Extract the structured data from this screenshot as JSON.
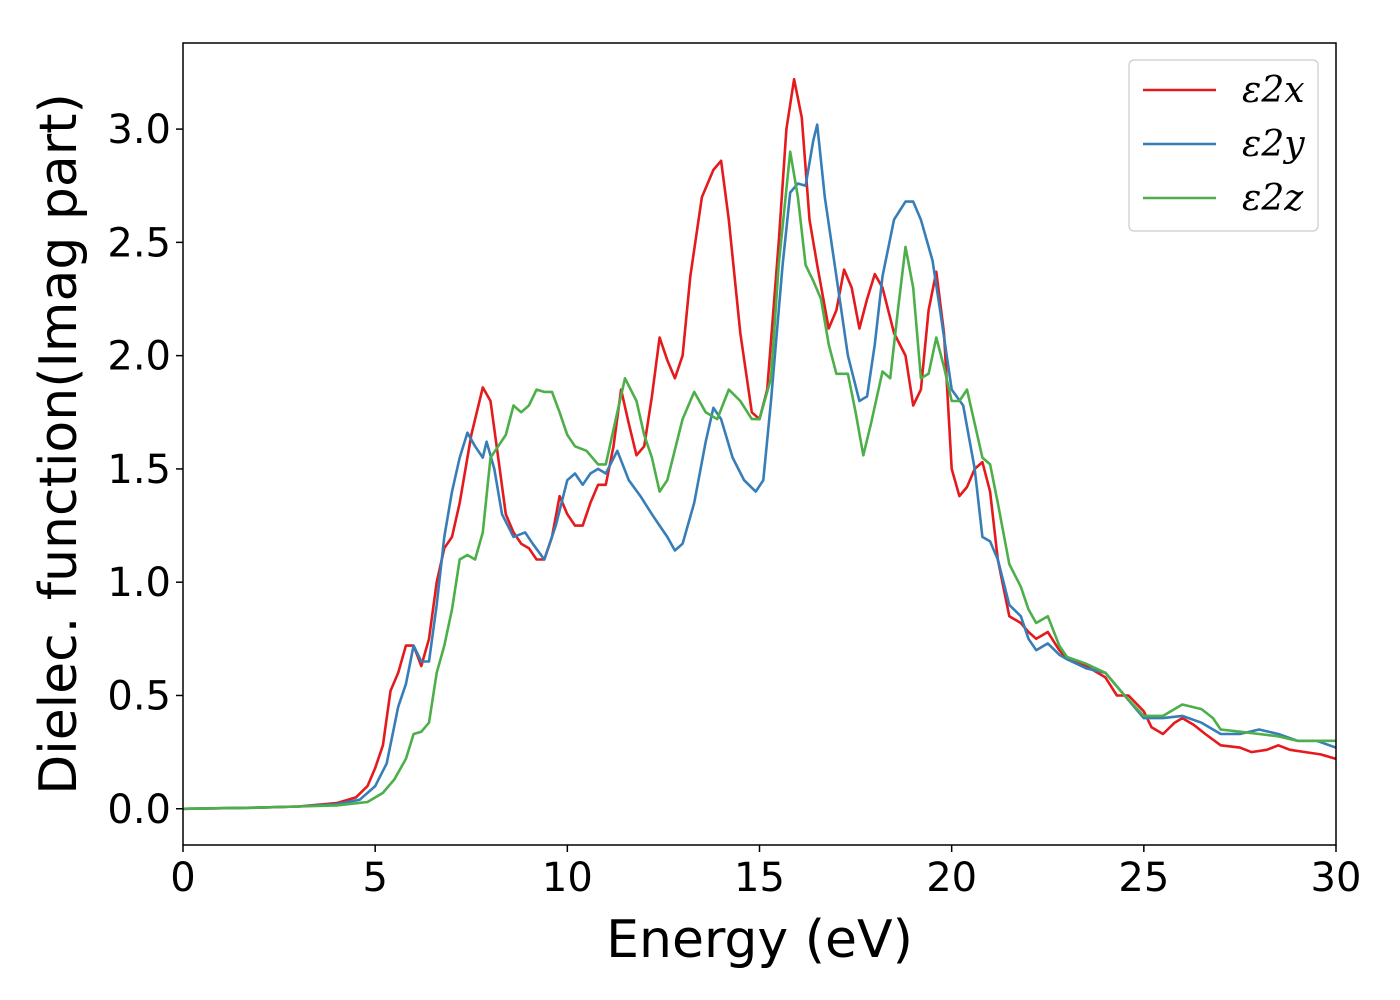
{
  "chart_data": {
    "type": "line",
    "title": "",
    "xlabel": "Energy (eV)",
    "ylabel": "Dielec. function(Imag part)",
    "xlim": [
      0,
      30
    ],
    "ylim": [
      -0.16,
      3.38
    ],
    "xticks": [
      0,
      5,
      10,
      15,
      20,
      25,
      30
    ],
    "yticks": [
      0.0,
      0.5,
      1.0,
      1.5,
      2.0,
      2.5,
      3.0
    ],
    "xtick_labels": [
      "0",
      "5",
      "10",
      "15",
      "20",
      "25",
      "30"
    ],
    "ytick_labels": [
      "0.0",
      "0.5",
      "1.0",
      "1.5",
      "2.0",
      "2.5",
      "3.0"
    ],
    "grid": false,
    "legend_position": "top-right",
    "series": [
      {
        "name": "ε2x",
        "color": "#e41a1c",
        "points": [
          [
            0,
            0.0
          ],
          [
            2,
            0.005
          ],
          [
            3,
            0.01
          ],
          [
            4,
            0.025
          ],
          [
            4.5,
            0.05
          ],
          [
            4.8,
            0.1
          ],
          [
            5.0,
            0.18
          ],
          [
            5.2,
            0.28
          ],
          [
            5.4,
            0.52
          ],
          [
            5.6,
            0.6
          ],
          [
            5.8,
            0.72
          ],
          [
            6.0,
            0.72
          ],
          [
            6.2,
            0.63
          ],
          [
            6.4,
            0.75
          ],
          [
            6.6,
            1.0
          ],
          [
            6.8,
            1.15
          ],
          [
            7.0,
            1.2
          ],
          [
            7.2,
            1.35
          ],
          [
            7.5,
            1.65
          ],
          [
            7.8,
            1.86
          ],
          [
            8.0,
            1.8
          ],
          [
            8.2,
            1.55
          ],
          [
            8.4,
            1.3
          ],
          [
            8.6,
            1.22
          ],
          [
            8.8,
            1.17
          ],
          [
            9.0,
            1.15
          ],
          [
            9.2,
            1.1
          ],
          [
            9.4,
            1.1
          ],
          [
            9.6,
            1.2
          ],
          [
            9.8,
            1.38
          ],
          [
            10.0,
            1.3
          ],
          [
            10.2,
            1.25
          ],
          [
            10.4,
            1.25
          ],
          [
            10.6,
            1.35
          ],
          [
            10.8,
            1.43
          ],
          [
            11.0,
            1.43
          ],
          [
            11.2,
            1.6
          ],
          [
            11.4,
            1.85
          ],
          [
            11.6,
            1.7
          ],
          [
            11.8,
            1.56
          ],
          [
            12.0,
            1.6
          ],
          [
            12.2,
            1.82
          ],
          [
            12.4,
            2.08
          ],
          [
            12.6,
            1.98
          ],
          [
            12.8,
            1.9
          ],
          [
            13.0,
            2.0
          ],
          [
            13.2,
            2.35
          ],
          [
            13.5,
            2.7
          ],
          [
            13.8,
            2.82
          ],
          [
            14.0,
            2.86
          ],
          [
            14.2,
            2.6
          ],
          [
            14.5,
            2.1
          ],
          [
            14.8,
            1.75
          ],
          [
            15.0,
            1.72
          ],
          [
            15.2,
            1.85
          ],
          [
            15.5,
            2.5
          ],
          [
            15.7,
            3.0
          ],
          [
            15.9,
            3.22
          ],
          [
            16.1,
            3.05
          ],
          [
            16.3,
            2.6
          ],
          [
            16.5,
            2.4
          ],
          [
            16.8,
            2.12
          ],
          [
            17.0,
            2.2
          ],
          [
            17.2,
            2.38
          ],
          [
            17.4,
            2.3
          ],
          [
            17.6,
            2.12
          ],
          [
            17.8,
            2.25
          ],
          [
            18.0,
            2.36
          ],
          [
            18.2,
            2.3
          ],
          [
            18.5,
            2.1
          ],
          [
            18.8,
            2.0
          ],
          [
            19.0,
            1.78
          ],
          [
            19.2,
            1.85
          ],
          [
            19.4,
            2.2
          ],
          [
            19.6,
            2.37
          ],
          [
            19.8,
            2.1
          ],
          [
            20.0,
            1.5
          ],
          [
            20.2,
            1.38
          ],
          [
            20.4,
            1.42
          ],
          [
            20.6,
            1.5
          ],
          [
            20.8,
            1.53
          ],
          [
            21.0,
            1.4
          ],
          [
            21.2,
            1.1
          ],
          [
            21.5,
            0.85
          ],
          [
            21.8,
            0.82
          ],
          [
            22.0,
            0.78
          ],
          [
            22.2,
            0.75
          ],
          [
            22.5,
            0.78
          ],
          [
            22.8,
            0.7
          ],
          [
            23.0,
            0.66
          ],
          [
            23.5,
            0.63
          ],
          [
            24.0,
            0.58
          ],
          [
            24.3,
            0.5
          ],
          [
            24.6,
            0.5
          ],
          [
            25.0,
            0.43
          ],
          [
            25.2,
            0.36
          ],
          [
            25.5,
            0.33
          ],
          [
            25.8,
            0.38
          ],
          [
            26.0,
            0.4
          ],
          [
            26.3,
            0.37
          ],
          [
            26.6,
            0.33
          ],
          [
            27.0,
            0.28
          ],
          [
            27.5,
            0.27
          ],
          [
            27.8,
            0.25
          ],
          [
            28.2,
            0.26
          ],
          [
            28.5,
            0.28
          ],
          [
            28.8,
            0.26
          ],
          [
            29.2,
            0.25
          ],
          [
            29.6,
            0.24
          ],
          [
            30.0,
            0.22
          ]
        ]
      },
      {
        "name": "ε2y",
        "color": "#377eb8",
        "points": [
          [
            0,
            0.0
          ],
          [
            2,
            0.005
          ],
          [
            3,
            0.01
          ],
          [
            4,
            0.02
          ],
          [
            4.6,
            0.04
          ],
          [
            5.0,
            0.1
          ],
          [
            5.3,
            0.2
          ],
          [
            5.6,
            0.45
          ],
          [
            5.8,
            0.55
          ],
          [
            6.0,
            0.72
          ],
          [
            6.2,
            0.65
          ],
          [
            6.4,
            0.65
          ],
          [
            6.6,
            0.9
          ],
          [
            6.8,
            1.2
          ],
          [
            7.0,
            1.4
          ],
          [
            7.2,
            1.55
          ],
          [
            7.4,
            1.66
          ],
          [
            7.6,
            1.6
          ],
          [
            7.8,
            1.55
          ],
          [
            7.9,
            1.62
          ],
          [
            8.1,
            1.5
          ],
          [
            8.3,
            1.3
          ],
          [
            8.6,
            1.2
          ],
          [
            8.9,
            1.22
          ],
          [
            9.1,
            1.17
          ],
          [
            9.4,
            1.1
          ],
          [
            9.7,
            1.25
          ],
          [
            10.0,
            1.45
          ],
          [
            10.2,
            1.48
          ],
          [
            10.4,
            1.43
          ],
          [
            10.6,
            1.48
          ],
          [
            10.8,
            1.5
          ],
          [
            11.0,
            1.48
          ],
          [
            11.3,
            1.58
          ],
          [
            11.6,
            1.45
          ],
          [
            11.9,
            1.38
          ],
          [
            12.2,
            1.3
          ],
          [
            12.4,
            1.25
          ],
          [
            12.6,
            1.2
          ],
          [
            12.8,
            1.14
          ],
          [
            13.0,
            1.17
          ],
          [
            13.3,
            1.35
          ],
          [
            13.6,
            1.62
          ],
          [
            13.8,
            1.77
          ],
          [
            14.0,
            1.72
          ],
          [
            14.3,
            1.55
          ],
          [
            14.6,
            1.45
          ],
          [
            14.9,
            1.4
          ],
          [
            15.1,
            1.45
          ],
          [
            15.3,
            1.8
          ],
          [
            15.6,
            2.4
          ],
          [
            15.8,
            2.72
          ],
          [
            16.0,
            2.76
          ],
          [
            16.2,
            2.75
          ],
          [
            16.4,
            2.95
          ],
          [
            16.5,
            3.02
          ],
          [
            16.7,
            2.7
          ],
          [
            17.0,
            2.35
          ],
          [
            17.3,
            2.0
          ],
          [
            17.6,
            1.8
          ],
          [
            17.8,
            1.82
          ],
          [
            18.0,
            2.05
          ],
          [
            18.2,
            2.35
          ],
          [
            18.5,
            2.6
          ],
          [
            18.8,
            2.68
          ],
          [
            19.0,
            2.68
          ],
          [
            19.2,
            2.6
          ],
          [
            19.5,
            2.42
          ],
          [
            19.7,
            2.2
          ],
          [
            20.0,
            1.85
          ],
          [
            20.3,
            1.78
          ],
          [
            20.6,
            1.5
          ],
          [
            20.8,
            1.2
          ],
          [
            21.0,
            1.18
          ],
          [
            21.2,
            1.1
          ],
          [
            21.5,
            0.9
          ],
          [
            21.8,
            0.85
          ],
          [
            22.0,
            0.75
          ],
          [
            22.2,
            0.7
          ],
          [
            22.5,
            0.73
          ],
          [
            22.8,
            0.68
          ],
          [
            23.0,
            0.66
          ],
          [
            23.5,
            0.62
          ],
          [
            24.0,
            0.6
          ],
          [
            24.5,
            0.5
          ],
          [
            25.0,
            0.4
          ],
          [
            25.5,
            0.4
          ],
          [
            26.0,
            0.41
          ],
          [
            26.5,
            0.38
          ],
          [
            27.0,
            0.33
          ],
          [
            27.5,
            0.33
          ],
          [
            28.0,
            0.35
          ],
          [
            28.5,
            0.33
          ],
          [
            29.0,
            0.3
          ],
          [
            29.5,
            0.3
          ],
          [
            30.0,
            0.27
          ]
        ]
      },
      {
        "name": "ε2z",
        "color": "#4daf4a",
        "points": [
          [
            0,
            0.0
          ],
          [
            2,
            0.005
          ],
          [
            3,
            0.01
          ],
          [
            4,
            0.015
          ],
          [
            4.8,
            0.03
          ],
          [
            5.2,
            0.07
          ],
          [
            5.5,
            0.13
          ],
          [
            5.8,
            0.22
          ],
          [
            6.0,
            0.33
          ],
          [
            6.2,
            0.34
          ],
          [
            6.4,
            0.38
          ],
          [
            6.6,
            0.6
          ],
          [
            6.8,
            0.72
          ],
          [
            7.0,
            0.88
          ],
          [
            7.2,
            1.1
          ],
          [
            7.4,
            1.12
          ],
          [
            7.6,
            1.1
          ],
          [
            7.8,
            1.22
          ],
          [
            8.0,
            1.55
          ],
          [
            8.2,
            1.6
          ],
          [
            8.4,
            1.65
          ],
          [
            8.6,
            1.78
          ],
          [
            8.8,
            1.75
          ],
          [
            9.0,
            1.78
          ],
          [
            9.2,
            1.85
          ],
          [
            9.4,
            1.84
          ],
          [
            9.6,
            1.84
          ],
          [
            9.8,
            1.75
          ],
          [
            10.0,
            1.65
          ],
          [
            10.2,
            1.6
          ],
          [
            10.5,
            1.58
          ],
          [
            10.8,
            1.52
          ],
          [
            11.0,
            1.52
          ],
          [
            11.3,
            1.75
          ],
          [
            11.5,
            1.9
          ],
          [
            11.8,
            1.8
          ],
          [
            12.0,
            1.65
          ],
          [
            12.2,
            1.55
          ],
          [
            12.4,
            1.4
          ],
          [
            12.6,
            1.45
          ],
          [
            13.0,
            1.72
          ],
          [
            13.3,
            1.84
          ],
          [
            13.6,
            1.75
          ],
          [
            13.9,
            1.72
          ],
          [
            14.2,
            1.85
          ],
          [
            14.5,
            1.8
          ],
          [
            14.8,
            1.72
          ],
          [
            15.0,
            1.72
          ],
          [
            15.3,
            1.9
          ],
          [
            15.5,
            2.4
          ],
          [
            15.8,
            2.9
          ],
          [
            16.0,
            2.7
          ],
          [
            16.2,
            2.4
          ],
          [
            16.4,
            2.33
          ],
          [
            16.6,
            2.25
          ],
          [
            16.8,
            2.05
          ],
          [
            17.0,
            1.92
          ],
          [
            17.3,
            1.92
          ],
          [
            17.5,
            1.75
          ],
          [
            17.7,
            1.56
          ],
          [
            17.9,
            1.7
          ],
          [
            18.2,
            1.93
          ],
          [
            18.4,
            1.9
          ],
          [
            18.6,
            2.2
          ],
          [
            18.8,
            2.48
          ],
          [
            19.0,
            2.3
          ],
          [
            19.2,
            1.9
          ],
          [
            19.4,
            1.92
          ],
          [
            19.6,
            2.08
          ],
          [
            19.8,
            1.95
          ],
          [
            20.0,
            1.8
          ],
          [
            20.2,
            1.8
          ],
          [
            20.4,
            1.85
          ],
          [
            20.6,
            1.7
          ],
          [
            20.8,
            1.55
          ],
          [
            21.0,
            1.52
          ],
          [
            21.2,
            1.35
          ],
          [
            21.5,
            1.08
          ],
          [
            21.8,
            0.98
          ],
          [
            22.0,
            0.88
          ],
          [
            22.2,
            0.82
          ],
          [
            22.5,
            0.85
          ],
          [
            22.8,
            0.72
          ],
          [
            23.0,
            0.67
          ],
          [
            23.5,
            0.64
          ],
          [
            24.0,
            0.6
          ],
          [
            24.5,
            0.5
          ],
          [
            25.0,
            0.41
          ],
          [
            25.5,
            0.41
          ],
          [
            26.0,
            0.46
          ],
          [
            26.5,
            0.44
          ],
          [
            26.8,
            0.4
          ],
          [
            27.0,
            0.35
          ],
          [
            27.5,
            0.34
          ],
          [
            28.0,
            0.33
          ],
          [
            28.5,
            0.32
          ],
          [
            29.0,
            0.3
          ],
          [
            29.5,
            0.3
          ],
          [
            30.0,
            0.3
          ]
        ]
      }
    ]
  }
}
